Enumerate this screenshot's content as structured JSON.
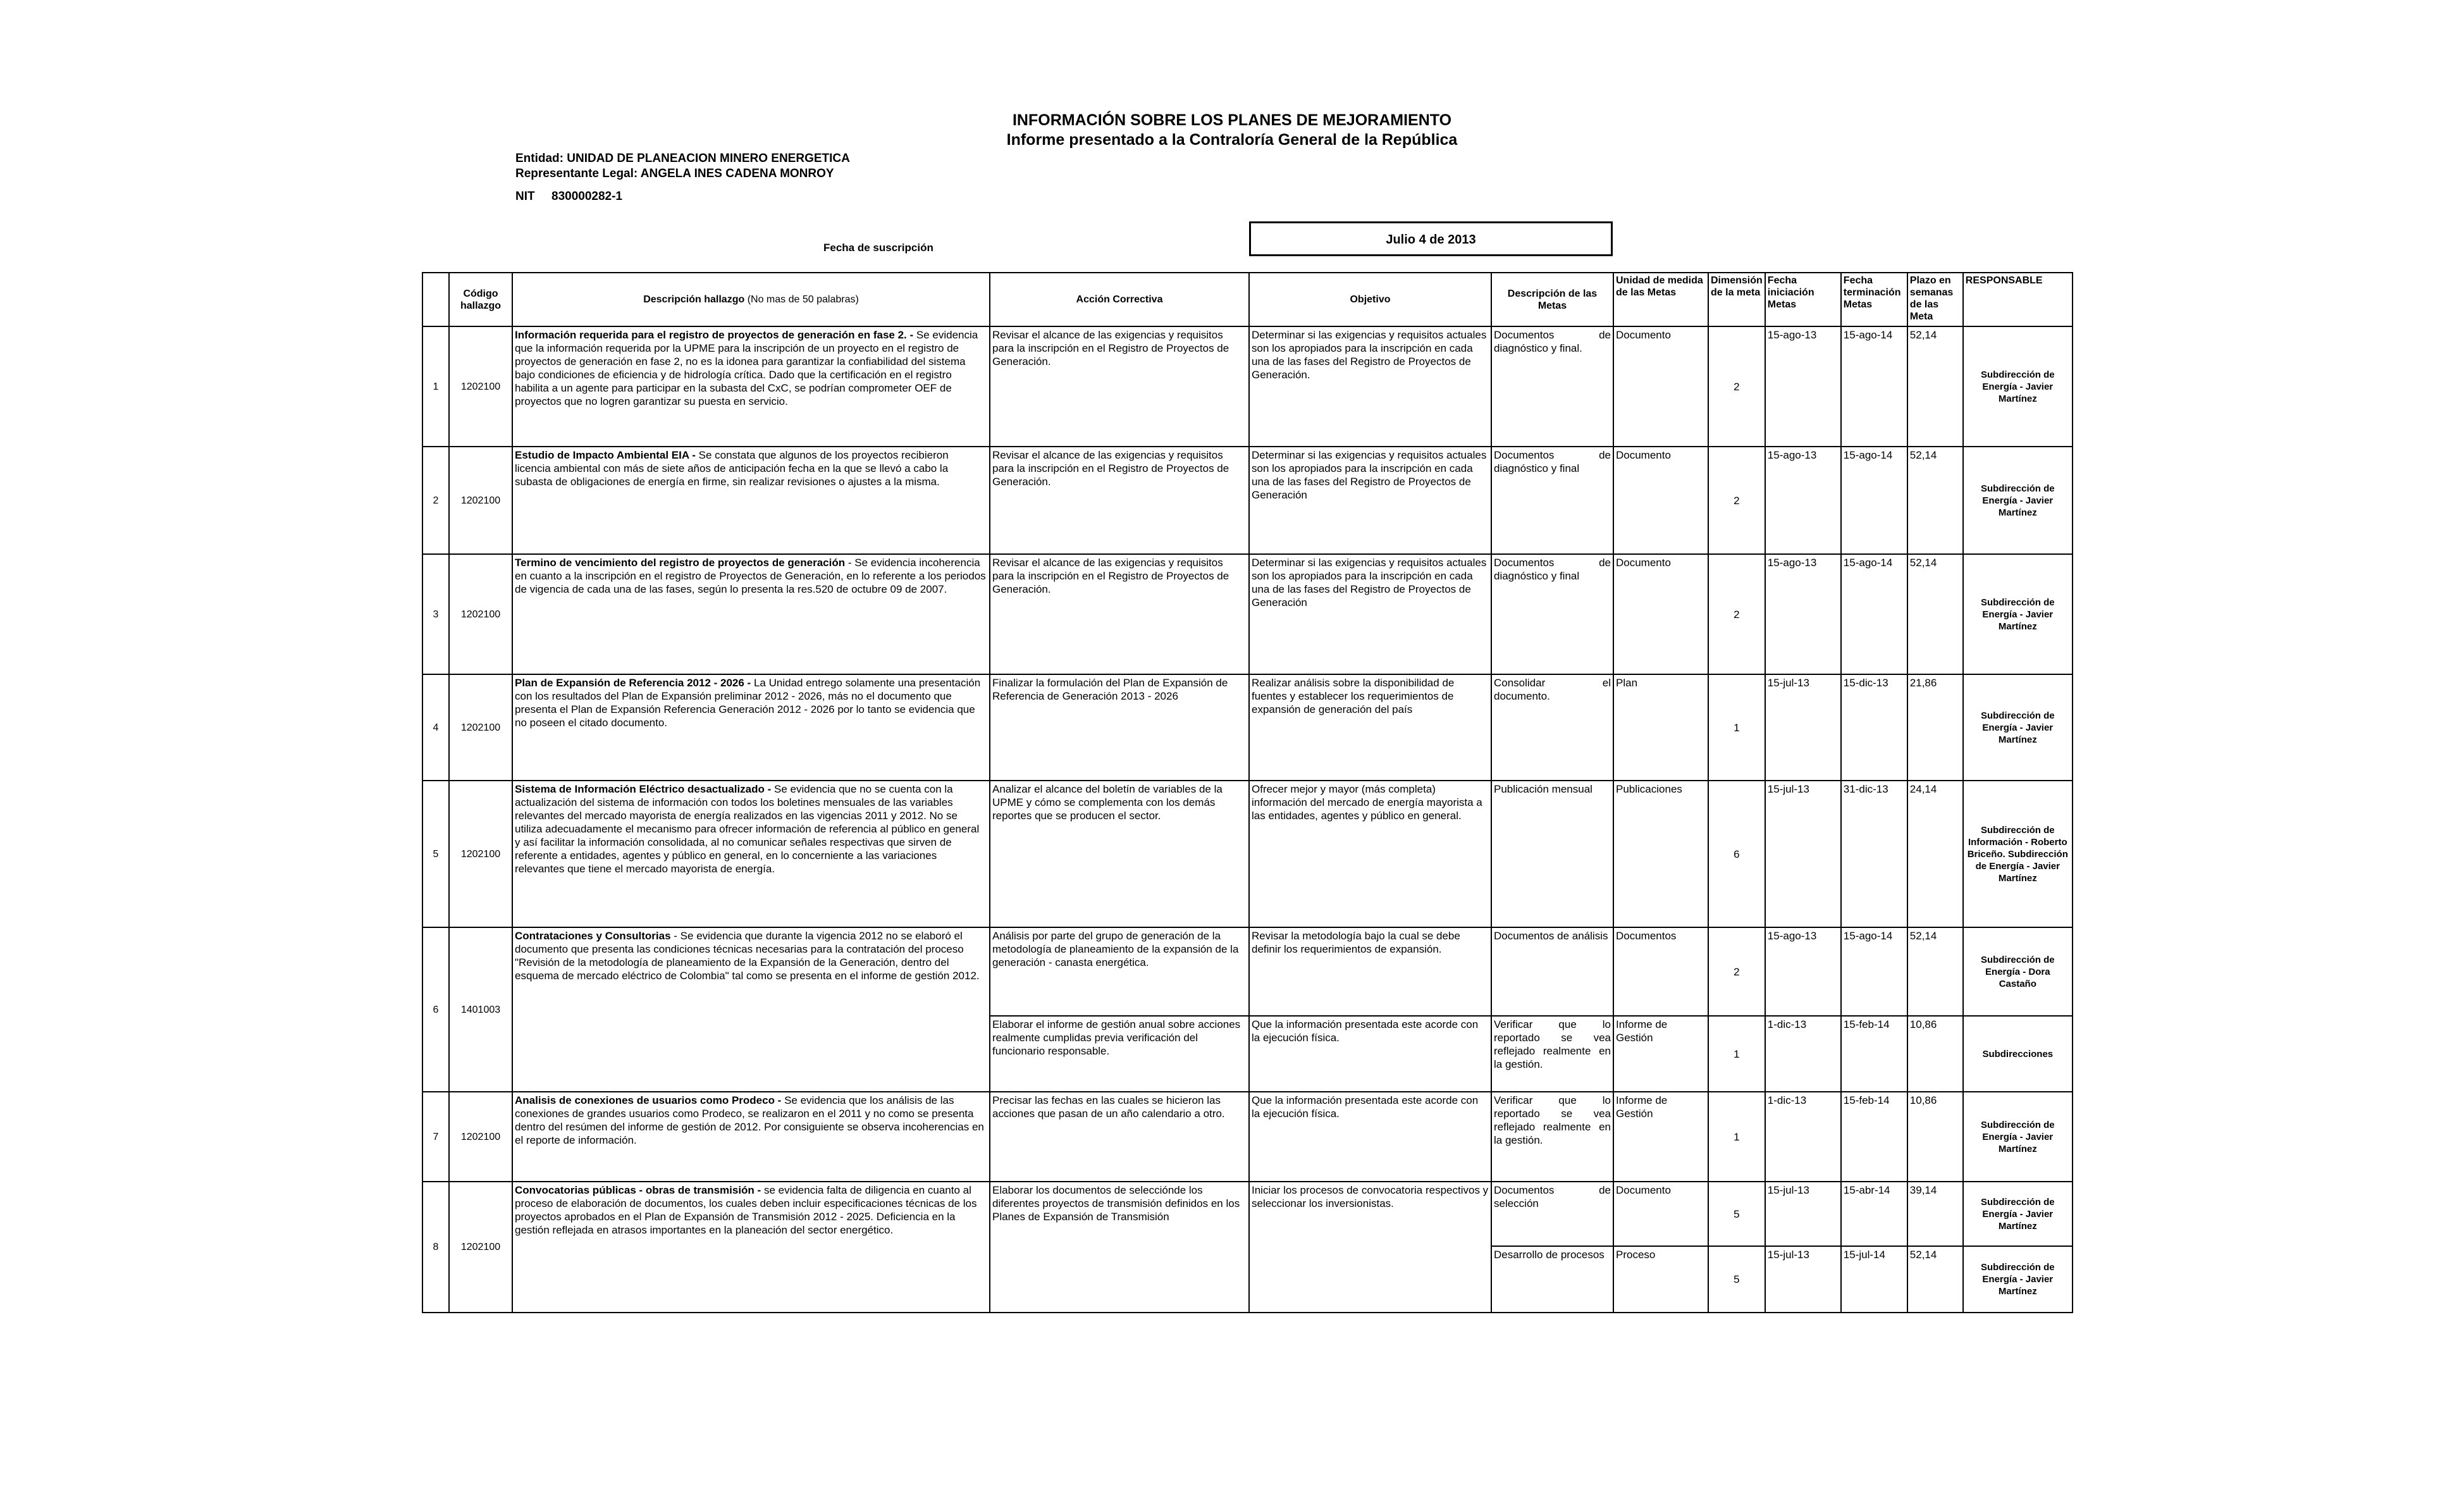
{
  "header": {
    "title": "INFORMACIÓN SOBRE LOS PLANES DE MEJORAMIENTO",
    "subtitle": "Informe presentado a la Contraloría General de la República",
    "entity": "Entidad:  UNIDAD DE PLANEACION MINERO ENERGETICA",
    "representative": "Representante Legal:  ANGELA INES CADENA MONROY",
    "nit": "NIT     830000282-1",
    "date_label": "Fecha de suscripción",
    "date": "Julio 4 de 2013"
  },
  "table": {
    "columns": {
      "code": "Código hallazgo",
      "description_bold": "Descripción hallazgo",
      "description_note": "(No mas de 50 palabras)",
      "action": "Acción Correctiva",
      "objective": "Objetivo",
      "goal": "Descripción de las Metas",
      "unit": "Unidad de medida de las Metas",
      "dimension": "Dimensión de la meta",
      "start": "Fecha iniciación Metas",
      "end": "Fecha terminación Metas",
      "weeks": "Plazo en semanas de las Meta",
      "responsible": "RESPONSABLE"
    },
    "rows": [
      {
        "number": 1,
        "code": "1202100",
        "description_bold": "Información requerida para el registro de proyectos de generación en fase 2. -",
        "description": "Se evidencia que la información requerida por la UPME para la inscripción de un proyecto en el registro de proyectos de generación en fase 2, no es la idonea para garantizar la confiabilidad del sistema bajo condiciones de eficiencia y de hidrología crítica.  Dado que la certificación en el registro habilita a un agente para participar en la subasta del CxC, se podrían comprometer OEF de proyectos que no logren garantizar su puesta en servicio.",
        "goals": [
          {
            "action": "Revisar el alcance de las exigencias y requisitos para la inscripción en el Registro de Proyectos de Generación.",
            "objective": "Determinar si las exigencias y requisitos actuales son los apropiados para la inscripción en cada una de las fases del Registro de Proyectos de Generación.",
            "goal": "Documentos de diagnóstico y final.",
            "unit": "Documento",
            "dimension": 2,
            "start": "15-ago-13",
            "end": "15-ago-14",
            "weeks": "52,14",
            "responsible": "Subdirección de Energía - Javier Martínez"
          }
        ]
      },
      {
        "number": 2,
        "code": "1202100",
        "description_bold": "Estudio de Impacto Ambiental  EIA -",
        "description": "Se constata que algunos de los proyectos recibieron licencia ambiental con más de siete años de anticipación fecha en la que se llevó a cabo la subasta de obligaciones de energía en firme, sin realizar revisiones o ajustes a la misma.",
        "goals": [
          {
            "action": "Revisar el alcance de las exigencias y requisitos para la inscripción en el Registro de Proyectos de Generación.",
            "objective": "Determinar si las exigencias y requisitos actuales son los apropiados para la inscripción en cada una de las fases del Registro de Proyectos de Generación",
            "goal": "Documentos de diagnóstico y final",
            "unit": "Documento",
            "dimension": 2,
            "start": "15-ago-13",
            "end": "15-ago-14",
            "weeks": "52,14",
            "responsible": "Subdirección de Energía - Javier Martínez"
          }
        ]
      },
      {
        "number": 3,
        "code": "1202100",
        "description_bold": "Termino de vencimiento del registro de proyectos de generación",
        "description": "- Se evidencia incoherencia en cuanto a la inscripción en el registro de Proyectos de Generación, en lo referente a los periodos de vigencia de cada una de las fases, según lo presenta la res.520 de octubre 09 de 2007.",
        "goals": [
          {
            "action": "Revisar el alcance de las exigencias y requisitos para la inscripción en el Registro de Proyectos de Generación.",
            "objective": "Determinar si las exigencias y requisitos actuales son los apropiados para la inscripción en cada una de las fases del Registro de Proyectos de Generación",
            "goal": "Documentos de diagnóstico y final",
            "unit": "Documento",
            "dimension": 2,
            "start": "15-ago-13",
            "end": "15-ago-14",
            "weeks": "52,14",
            "responsible": "Subdirección de Energía - Javier Martínez"
          }
        ]
      },
      {
        "number": 4,
        "code": "1202100",
        "description_bold": "Plan de Expansión de Referencia 2012 - 2026 -",
        "description": "La Unidad entrego solamente una presentación con los resultados del Plan de Expansión preliminar 2012 - 2026, más no el documento que presenta el Plan de Expansión Referencia Generación 2012 - 2026 por lo tanto se evidencia que no poseen el citado documento.",
        "goals": [
          {
            "action": "Finalizar la formulación del  Plan de Expansión de Referencia de Generación 2013 - 2026",
            "objective": "Realizar análisis sobre la disponibilidad de fuentes y establecer los requerimientos de expansión de generación del país",
            "goal": "Consolidar el documento.",
            "unit": "Plan",
            "dimension": 1,
            "start": "15-jul-13",
            "end": "15-dic-13",
            "weeks": "21,86",
            "responsible": "Subdirección de Energía - Javier Martínez"
          }
        ]
      },
      {
        "number": 5,
        "code": "1202100",
        "description_bold": "Sistema de Información Eléctrico desactualizado -",
        "description": "Se evidencia que no se cuenta con la actualización del sistema de información con todos los boletines mensuales de las variables relevantes del mercado mayorista de energía realizados en las vigencias 2011 y 2012.  No se utiliza adecuadamente el mecanismo para ofrecer información de referencia al público en general y así facilitar la información consolidada, al no comunicar señales respectivas que sirven de referente a entidades, agentes y público en general, en lo concerniente a las variaciones relevantes que tiene el mercado mayorista de energía.",
        "goals": [
          {
            "action": "Analizar el alcance del boletín de variables de la UPME y cómo se complementa con los demás reportes que se producen el sector.",
            "objective": "Ofrecer mejor y mayor (más completa) información del mercado de energía mayorista a las entidades, agentes y público en general.",
            "goal": "Publicación mensual",
            "unit": "Publicaciones",
            "dimension": 6,
            "start": "15-jul-13",
            "end": "31-dic-13",
            "weeks": "24,14",
            "responsible": "Subdirección de Información - Roberto Briceño. Subdirección de Energía - Javier Martínez"
          }
        ]
      },
      {
        "number": 6,
        "code": "1401003",
        "description_bold": "Contrataciones y Consultorias",
        "description": "- Se evidencia que durante la vigencia 2012 no se elaboró el documento que presenta las condiciones técnicas necesarias para la contratación del proceso \"Revisión de la metodología de planeamiento de la Expansión de la Generación, dentro del esquema de mercado eléctrico de Colombia\" tal como se presenta en el informe de gestión 2012.",
        "goals": [
          {
            "action": "Análisis por parte del grupo de generación de la metodología de planeamiento de la expansión de la generación - canasta energética.",
            "objective": "Revisar la metodología bajo la cual se debe definir los requerimientos de expansión.",
            "goal": "Documentos de análisis",
            "unit": "Documentos",
            "dimension": 2,
            "start": "15-ago-13",
            "end": "15-ago-14",
            "weeks": "52,14",
            "responsible": "Subdirección de Energía - Dora Castaño"
          },
          {
            "action": "Elaborar el  informe de gestión anual sobre acciones realmente cumplidas previa verificación del funcionario responsable.",
            "objective": "Que la información presentada este acorde con la ejecución física.",
            "goal": "Verificar que lo reportado se vea reflejado realmente en la gestión.",
            "unit": "Informe de Gestión",
            "dimension": 1,
            "start": "1-dic-13",
            "end": "15-feb-14",
            "weeks": "10,86",
            "responsible": "Subdirecciones"
          }
        ]
      },
      {
        "number": 7,
        "code": "1202100",
        "description_bold": "Analisis de conexiones de usuarios como Prodeco -",
        "description": "Se evidencia que los análisis de las conexiones de grandes usuarios como Prodeco, se realizaron en el 2011 y no como se presenta dentro del resúmen del informe de gestión de 2012.  Por consiguiente se observa incoherencias en el reporte de información.",
        "goals": [
          {
            "action": "Precisar las fechas en las cuales se hicieron las acciones que pasan de un año calendario a otro.",
            "objective": "Que la información presentada este acorde con la ejecución física.",
            "goal": "Verificar que lo reportado se vea reflejado realmente en la gestión.",
            "unit": "Informe de Gestión",
            "dimension": 1,
            "start": "1-dic-13",
            "end": "15-feb-14",
            "weeks": "10,86",
            "responsible": "Subdirección de Energía - Javier Martínez"
          }
        ]
      },
      {
        "number": 8,
        "code": "1202100",
        "description_bold": "Convocatorias públicas - obras de transmisión -",
        "description": "se evidencia falta de diligencia en cuanto al proceso de elaboración de documentos, los cuales deben incluir especificaciones técnicas de los proyectos aprobados en el Plan de Expansión de Transmisión 2012 - 2025.  Deficiencia en la gestión reflejada en atrasos importantes en la planeación del sector energético.",
        "goals": [
          {
            "action": "Elaborar los documentos de selecciónde los diferentes proyectos de transmisión definidos en los Planes de Expansión de Transmisión",
            "objective": "Iniciar los procesos de convocatoria respectivos y seleccionar los inversionistas.",
            "goal": "Documentos de selección",
            "unit": "Documento",
            "dimension": 5,
            "start": "15-jul-13",
            "end": "15-abr-14",
            "weeks": "39,14",
            "responsible": "Subdirección de Energía - Javier Martínez"
          },
          {
            "goal": "Desarrollo de procesos",
            "unit": "Proceso",
            "dimension": 5,
            "start": "15-jul-13",
            "end": "15-jul-14",
            "weeks": "52,14",
            "responsible": "Subdirección de Energía - Javier Martínez"
          }
        ]
      }
    ]
  }
}
